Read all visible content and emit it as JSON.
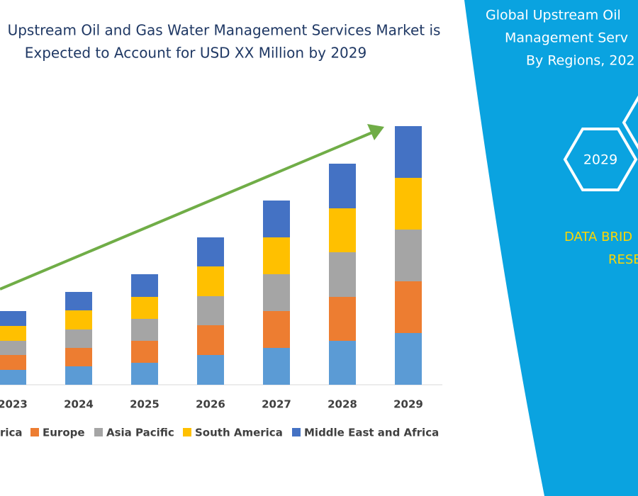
{
  "chart_data": {
    "type": "stacked_bar",
    "title_lines": [
      "Upstream Oil and Gas Water Management Services Market is",
      "Expected to Account for USD XX Million by 2029"
    ],
    "categories": [
      "2023",
      "2024",
      "2025",
      "2026",
      "2027",
      "2028",
      "2029"
    ],
    "series": [
      {
        "name": "rica",
        "color": "#5b9bd5",
        "values": [
          21,
          26,
          31,
          42,
          52,
          62,
          73
        ]
      },
      {
        "name": "Europe",
        "color": "#ed7d31",
        "values": [
          21,
          26,
          31,
          42,
          52,
          62,
          73
        ]
      },
      {
        "name": "Asia Pacific",
        "color": "#a5a5a5",
        "values": [
          20,
          26,
          31,
          41,
          52,
          63,
          73
        ]
      },
      {
        "name": "South America",
        "color": "#ffc000",
        "values": [
          21,
          27,
          31,
          42,
          52,
          62,
          73
        ]
      },
      {
        "name": "Middle East and Africa",
        "color": "#4472c4",
        "values": [
          21,
          26,
          32,
          41,
          52,
          63,
          73
        ]
      }
    ]
  },
  "panel": {
    "title_lines": [
      "Global Upstream Oil",
      "Management Serv",
      "By Regions, 202"
    ],
    "hexagon_label": "2029",
    "brand_lines": [
      "DATA BRID",
      "RESE"
    ]
  }
}
